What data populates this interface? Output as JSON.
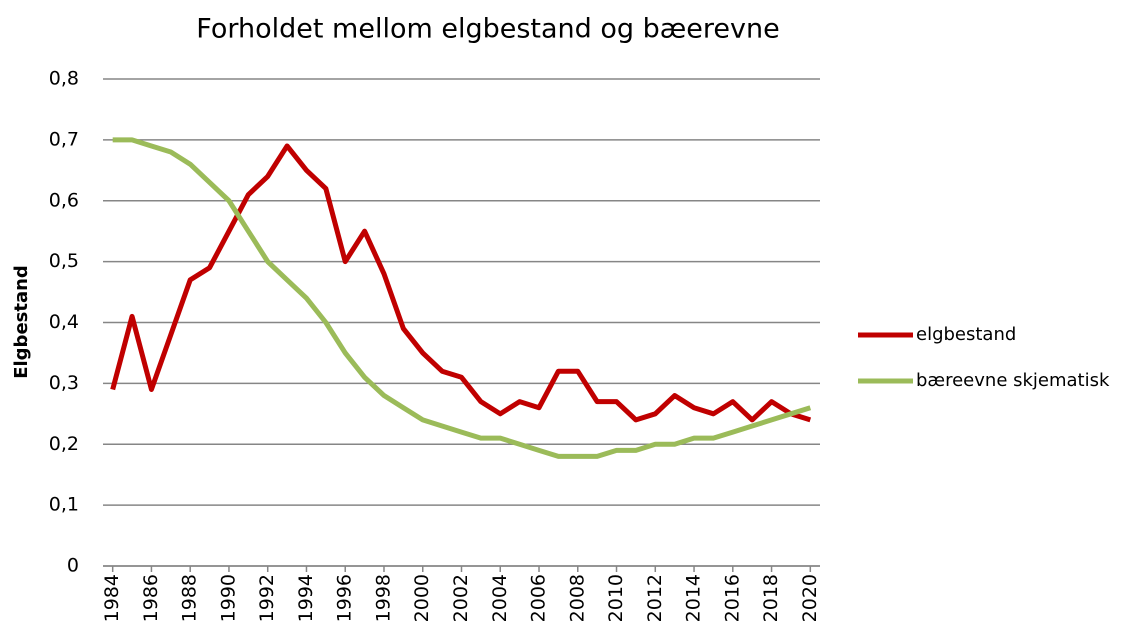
{
  "chart_data": {
    "type": "line",
    "title": "Forholdet mellom elgbestand og bæerevne",
    "y_label": "Elgbestand",
    "x": [
      1984,
      1985,
      1986,
      1987,
      1988,
      1989,
      1990,
      1991,
      1992,
      1993,
      1994,
      1995,
      1996,
      1997,
      1998,
      1999,
      2000,
      2001,
      2002,
      2003,
      2004,
      2005,
      2006,
      2007,
      2008,
      2009,
      2010,
      2011,
      2012,
      2013,
      2014,
      2015,
      2016,
      2017,
      2018,
      2019,
      2020
    ],
    "xlim": [
      1983.5,
      2020.5
    ],
    "xticks": [
      1984,
      1986,
      1988,
      1990,
      1992,
      1994,
      1996,
      1998,
      2000,
      2002,
      2004,
      2006,
      2008,
      2010,
      2012,
      2014,
      2016,
      2018,
      2020
    ],
    "ylim": [
      0,
      0.8
    ],
    "yticks": [
      0,
      {
        "value": 0.1,
        "label": "0,1"
      },
      {
        "value": 0.2,
        "label": "0,2"
      },
      {
        "value": 0.3,
        "label": "0,3"
      },
      {
        "value": 0.4,
        "label": "0,4"
      },
      {
        "value": 0.5,
        "label": "0,5"
      },
      {
        "value": 0.6,
        "label": "0,6"
      },
      {
        "value": 0.7,
        "label": "0,7"
      },
      {
        "value": 0.8,
        "label": "0,8"
      }
    ],
    "grid": true,
    "legend": "right",
    "series": [
      {
        "name": "elgbestand",
        "color": "#c00000",
        "values": [
          0.29,
          0.41,
          0.29,
          0.38,
          0.47,
          0.49,
          0.55,
          0.61,
          0.64,
          0.69,
          0.65,
          0.62,
          0.5,
          0.55,
          0.48,
          0.39,
          0.35,
          0.32,
          0.31,
          0.27,
          0.25,
          0.27,
          0.26,
          0.32,
          0.32,
          0.27,
          0.27,
          0.24,
          0.25,
          0.28,
          0.26,
          0.25,
          0.27,
          0.24,
          0.27,
          0.25,
          0.24
        ]
      },
      {
        "name": "bæreevne skjematisk",
        "color": "#9bbb59",
        "values": [
          0.7,
          0.7,
          0.69,
          0.68,
          0.66,
          0.63,
          0.6,
          0.55,
          0.5,
          0.47,
          0.44,
          0.4,
          0.35,
          0.31,
          0.28,
          0.26,
          0.24,
          0.23,
          0.22,
          0.21,
          0.21,
          0.2,
          0.19,
          0.18,
          0.18,
          0.18,
          0.19,
          0.19,
          0.2,
          0.2,
          0.21,
          0.21,
          0.22,
          0.23,
          0.24,
          0.25,
          0.26
        ]
      }
    ]
  }
}
